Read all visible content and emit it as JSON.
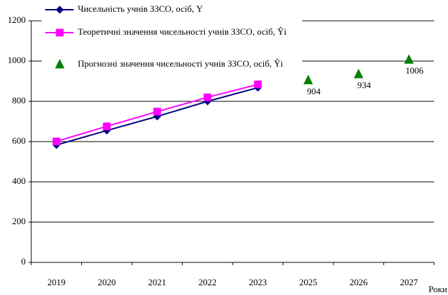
{
  "chart_data": {
    "type": "line",
    "x_label": "Роки",
    "categories": [
      "2019",
      "2020",
      "2021",
      "2022",
      "2023",
      "2025",
      "2026",
      "2027"
    ],
    "series": [
      {
        "name": "Чисельність учнів ЗЗСО, осіб, Y",
        "color": "#000080",
        "marker": "diamond",
        "line": true,
        "values": [
          583,
          655,
          725,
          800,
          868,
          null,
          null,
          null
        ]
      },
      {
        "name": "Теоретичні значення чисельності учнів ЗЗСО, осіб, Ŷi",
        "color": "#ff00ff",
        "marker": "square",
        "line": true,
        "values": [
          601,
          676,
          749,
          820,
          884,
          null,
          null,
          null
        ]
      },
      {
        "name": "Прогнозні значення чисельності учнів ЗЗСО, осіб, Ŷi",
        "color": "#008000",
        "marker": "triangle",
        "line": false,
        "data_labels": true,
        "values": [
          null,
          null,
          null,
          null,
          null,
          904,
          934,
          1006
        ]
      }
    ],
    "ylim": [
      0,
      1200
    ],
    "yticks": [
      0,
      200,
      400,
      600,
      800,
      1000,
      1200
    ],
    "grid": true
  }
}
